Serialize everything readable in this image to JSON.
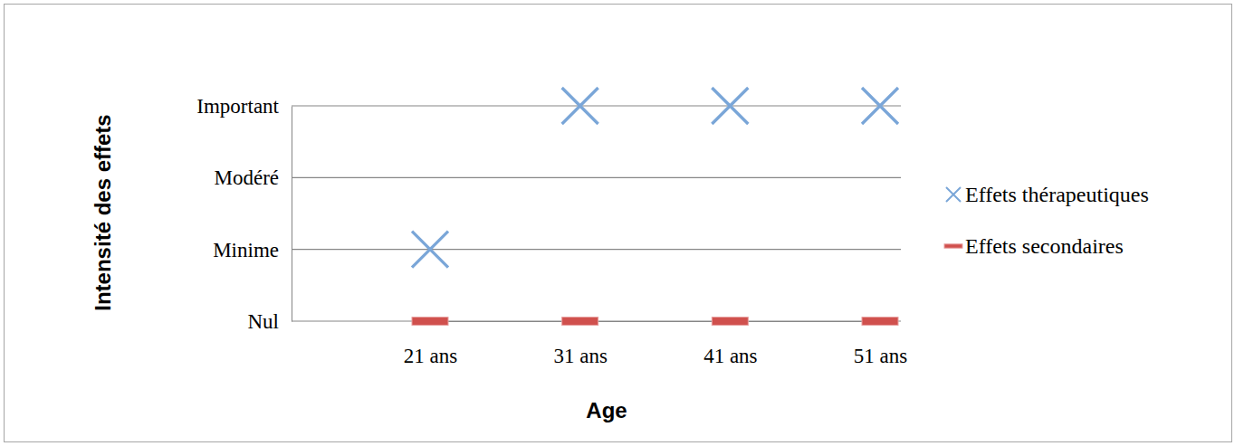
{
  "chart_data": {
    "type": "line",
    "x_label": "Age",
    "y_label": "Intensité des effets",
    "categories": [
      "21 ans",
      "31 ans",
      "41 ans",
      "51 ans"
    ],
    "ylim": [
      0,
      3
    ],
    "yticks": [
      {
        "value": 0,
        "label": "Nul"
      },
      {
        "value": 1,
        "label": "Minime"
      },
      {
        "value": 2,
        "label": "Modéré"
      },
      {
        "value": 3,
        "label": "Important"
      }
    ],
    "grid": true,
    "legend": "right",
    "series": [
      {
        "name": "Effets thérapeutiques",
        "color": "#7aa6d8",
        "marker": "x",
        "line_style": "none",
        "values": [
          1,
          3,
          3,
          3
        ]
      },
      {
        "name": "Effets secondaires",
        "color": "#d0504d",
        "marker": "dash",
        "line_style": "none",
        "values": [
          0,
          0,
          0,
          0
        ]
      }
    ]
  }
}
